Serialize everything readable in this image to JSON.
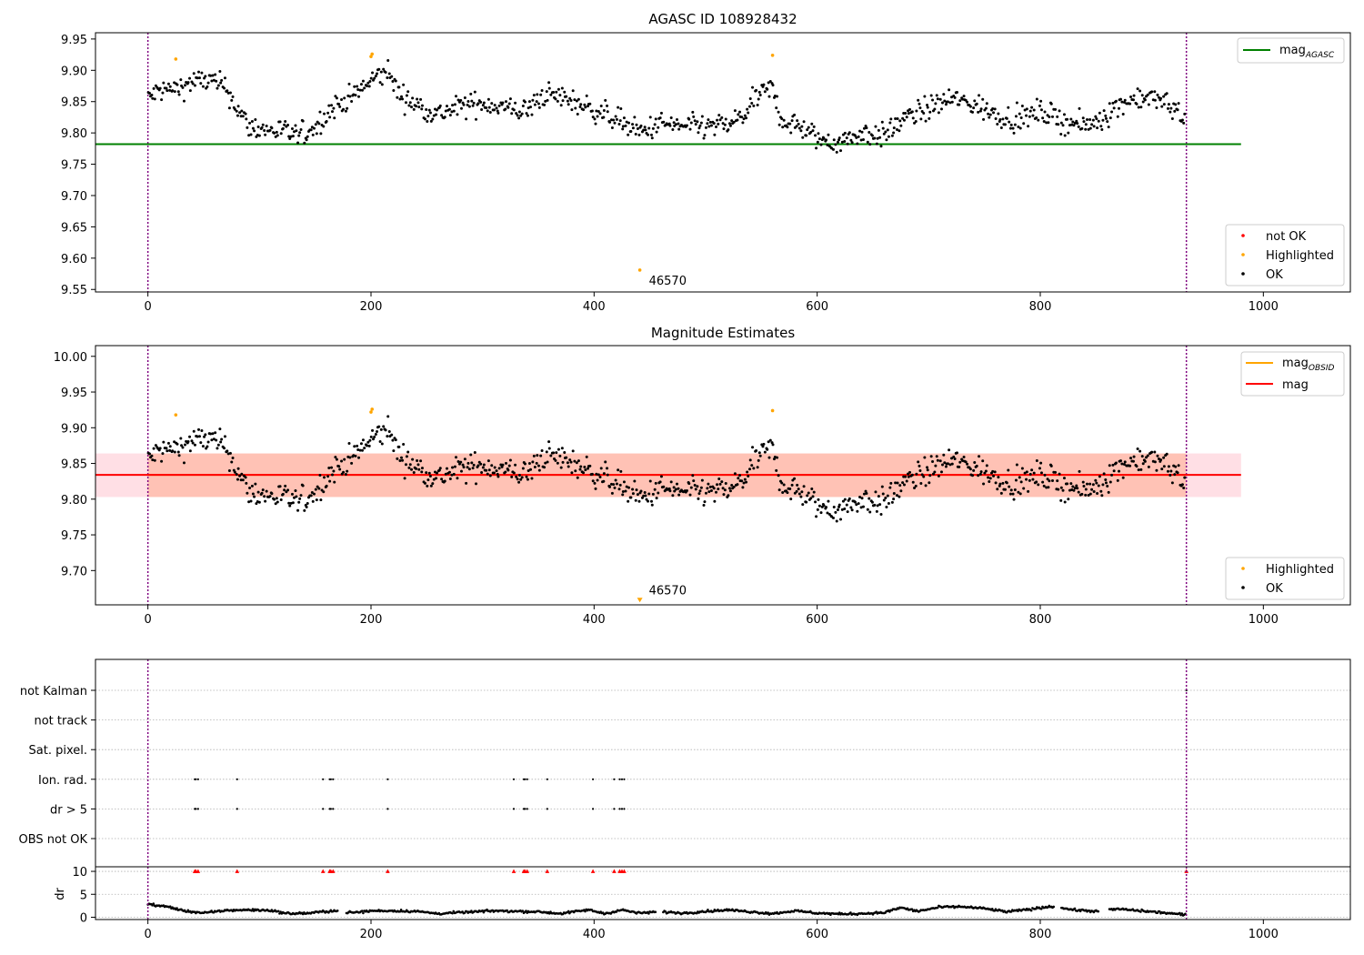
{
  "colors": {
    "ok": "#000000",
    "highlighted": "#ffa500",
    "not_ok": "#ff0000",
    "mag_agasc": "#008000",
    "mag_obsid": "#ffa500",
    "mag": "#ff0000",
    "band_outer": "#ffc0cb",
    "band_inner": "#ffa07a",
    "vline": "#800080",
    "grid": "#b0b0b0"
  },
  "chart_data": [
    {
      "type": "scatter",
      "title": "AGASC ID 108928432",
      "xlim": [
        -47,
        1078
      ],
      "ylim": [
        9.546,
        9.96
      ],
      "xticks": [
        0,
        200,
        400,
        600,
        800,
        1000
      ],
      "yticks": [
        9.55,
        9.6,
        9.65,
        9.7,
        9.75,
        9.8,
        9.85,
        9.9,
        9.95
      ],
      "vlines": [
        0,
        931
      ],
      "hlines": [
        {
          "y": 9.782,
          "x": [
            -47,
            980
          ],
          "series": "mag_AGASC"
        }
      ],
      "highlighted": [
        [
          25,
          9.918
        ],
        [
          200,
          9.922
        ],
        [
          201,
          9.926
        ],
        [
          560,
          9.924
        ],
        [
          441,
          9.581
        ]
      ],
      "annotations": [
        {
          "text": "46570",
          "x": 441,
          "y": 9.581
        }
      ],
      "legend_top": {
        "position": "top-right",
        "entries": [
          {
            "label": "mag",
            "sub": "AGASC",
            "kind": "line",
            "color": "#008000"
          }
        ]
      },
      "legend_bottom": {
        "position": "lower-right",
        "entries": [
          {
            "label": "not OK",
            "kind": "dot",
            "color": "#ff0000"
          },
          {
            "label": "Highlighted",
            "kind": "dot",
            "color": "#ffa500"
          },
          {
            "label": "OK",
            "kind": "dot",
            "color": "#000000"
          }
        ]
      },
      "trend": [
        [
          0,
          9.855
        ],
        [
          10,
          9.868
        ],
        [
          25,
          9.87
        ],
        [
          40,
          9.882
        ],
        [
          55,
          9.884
        ],
        [
          70,
          9.872
        ],
        [
          78,
          9.845
        ],
        [
          90,
          9.81
        ],
        [
          105,
          9.805
        ],
        [
          120,
          9.803
        ],
        [
          135,
          9.795
        ],
        [
          150,
          9.81
        ],
        [
          165,
          9.84
        ],
        [
          180,
          9.855
        ],
        [
          195,
          9.875
        ],
        [
          205,
          9.89
        ],
        [
          215,
          9.898
        ],
        [
          225,
          9.862
        ],
        [
          240,
          9.845
        ],
        [
          260,
          9.83
        ],
        [
          280,
          9.842
        ],
        [
          300,
          9.848
        ],
        [
          320,
          9.84
        ],
        [
          340,
          9.835
        ],
        [
          355,
          9.862
        ],
        [
          375,
          9.855
        ],
        [
          395,
          9.84
        ],
        [
          410,
          9.83
        ],
        [
          425,
          9.818
        ],
        [
          440,
          9.8
        ],
        [
          460,
          9.815
        ],
        [
          480,
          9.81
        ],
        [
          500,
          9.81
        ],
        [
          520,
          9.812
        ],
        [
          535,
          9.83
        ],
        [
          548,
          9.862
        ],
        [
          560,
          9.87
        ],
        [
          568,
          9.82
        ],
        [
          585,
          9.81
        ],
        [
          600,
          9.79
        ],
        [
          620,
          9.785
        ],
        [
          640,
          9.8
        ],
        [
          660,
          9.795
        ],
        [
          675,
          9.82
        ],
        [
          700,
          9.84
        ],
        [
          720,
          9.855
        ],
        [
          740,
          9.845
        ],
        [
          760,
          9.83
        ],
        [
          780,
          9.82
        ],
        [
          800,
          9.835
        ],
        [
          820,
          9.82
        ],
        [
          840,
          9.81
        ],
        [
          860,
          9.83
        ],
        [
          875,
          9.85
        ],
        [
          890,
          9.858
        ],
        [
          910,
          9.85
        ],
        [
          931,
          9.825
        ]
      ],
      "noise": 0.017
    },
    {
      "type": "scatter",
      "title": "Magnitude Estimates",
      "xlim": [
        -47,
        1078
      ],
      "ylim": [
        9.652,
        10.015
      ],
      "xticks": [
        0,
        200,
        400,
        600,
        800,
        1000
      ],
      "yticks": [
        9.7,
        9.75,
        9.8,
        9.85,
        9.9,
        9.95,
        10.0
      ],
      "vlines": [
        0,
        931
      ],
      "band": {
        "y": [
          9.803,
          9.864
        ],
        "x": [
          -47,
          980
        ]
      },
      "hlines": [
        {
          "y": 9.834,
          "x": [
            -47,
            980
          ],
          "series": "mag"
        }
      ],
      "highlighted": [
        [
          25,
          9.918
        ],
        [
          200,
          9.922
        ],
        [
          201,
          9.926
        ],
        [
          560,
          9.924
        ],
        [
          441,
          9.658
        ]
      ],
      "annotations": [
        {
          "text": "46570",
          "x": 441,
          "y": 9.658
        }
      ],
      "legend_top": {
        "position": "top-right",
        "entries": [
          {
            "label": "mag",
            "sub": "OBSID",
            "kind": "line",
            "color": "#ffa500"
          },
          {
            "label": "mag",
            "kind": "line",
            "color": "#ff0000"
          }
        ]
      },
      "legend_bottom": {
        "position": "lower-right",
        "entries": [
          {
            "label": "Highlighted",
            "kind": "dot",
            "color": "#ffa500"
          },
          {
            "label": "OK",
            "kind": "dot",
            "color": "#000000"
          }
        ]
      }
    },
    {
      "type": "scatter",
      "xlim": [
        -47,
        1078
      ],
      "xticks": [
        0,
        200,
        400,
        600,
        800,
        1000
      ],
      "vlines": [
        0,
        931
      ],
      "flag_rows": [
        "not Kalman",
        "not track",
        "Sat. pixel.",
        "Ion. rad.",
        "dr > 5",
        "OBS not OK"
      ],
      "flag_x": [
        42,
        43,
        45,
        80,
        157,
        163,
        164,
        166,
        215,
        328,
        337,
        338,
        340,
        358,
        399,
        418,
        423,
        425,
        427
      ],
      "flag_rows_active": [
        "Ion. rad.",
        "dr > 5"
      ],
      "ylabel": "dr",
      "dr_ylim": [
        -0.5,
        11
      ],
      "dr_yticks": [
        0,
        5,
        10
      ],
      "dr_threshold": 10,
      "dr_trend": [
        [
          0,
          2.9
        ],
        [
          10,
          2.5
        ],
        [
          20,
          2.2
        ],
        [
          30,
          1.5
        ],
        [
          50,
          0.9
        ],
        [
          70,
          1.5
        ],
        [
          90,
          1.6
        ],
        [
          110,
          1.5
        ],
        [
          125,
          0.8
        ],
        [
          145,
          0.9
        ],
        [
          165,
          1.4
        ],
        [
          185,
          1.0
        ],
        [
          200,
          1.4
        ],
        [
          220,
          1.4
        ],
        [
          240,
          1.3
        ],
        [
          260,
          0.8
        ],
        [
          285,
          1.1
        ],
        [
          310,
          1.4
        ],
        [
          330,
          1.3
        ],
        [
          350,
          1.2
        ],
        [
          370,
          0.8
        ],
        [
          395,
          1.6
        ],
        [
          410,
          0.8
        ],
        [
          425,
          1.6
        ],
        [
          440,
          0.9
        ],
        [
          460,
          1.2
        ],
        [
          480,
          0.9
        ],
        [
          500,
          1.3
        ],
        [
          520,
          1.6
        ],
        [
          540,
          1.2
        ],
        [
          560,
          0.8
        ],
        [
          580,
          1.4
        ],
        [
          600,
          0.9
        ],
        [
          620,
          0.7
        ],
        [
          640,
          0.8
        ],
        [
          660,
          1.0
        ],
        [
          675,
          2.1
        ],
        [
          690,
          1.3
        ],
        [
          710,
          2.2
        ],
        [
          730,
          2.3
        ],
        [
          750,
          1.9
        ],
        [
          770,
          1.2
        ],
        [
          790,
          1.7
        ],
        [
          810,
          2.4
        ],
        [
          830,
          1.6
        ],
        [
          850,
          1.3
        ],
        [
          870,
          1.8
        ],
        [
          890,
          1.4
        ],
        [
          910,
          1.0
        ],
        [
          931,
          0.5
        ]
      ]
    }
  ]
}
